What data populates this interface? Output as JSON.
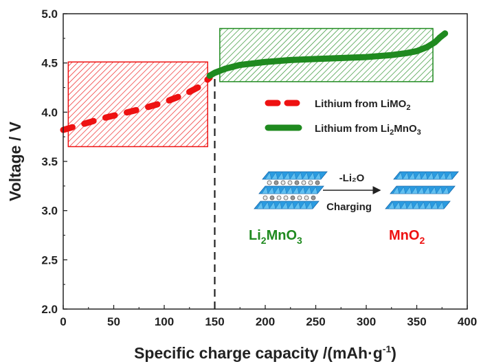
{
  "chart_data": {
    "type": "line",
    "x_axis": {
      "label_prefix": "Specific charge capacity /(mAh·g",
      "label_superscript": "-1",
      "label_suffix": ")",
      "range": [
        0,
        400
      ],
      "ticks": [
        "0",
        "50",
        "100",
        "150",
        "200",
        "250",
        "300",
        "350",
        "400"
      ]
    },
    "y_axis": {
      "label": "Voltage / V",
      "range": [
        2.0,
        5.0
      ],
      "ticks": [
        "2.0",
        "2.5",
        "3.0",
        "3.5",
        "4.0",
        "4.5",
        "5.0"
      ]
    },
    "series": [
      {
        "name": "Lithium from LiMO2",
        "legend_text": "Lithium from LiMO",
        "legend_subscript": "2",
        "style": "dashed",
        "color": "#ee1111",
        "x": [
          0,
          20,
          40,
          60,
          80,
          100,
          120,
          135,
          145
        ],
        "y": [
          3.82,
          3.88,
          3.94,
          3.99,
          4.04,
          4.1,
          4.18,
          4.26,
          4.35
        ]
      },
      {
        "name": "Lithium from Li2MnO3",
        "legend_parts": [
          "Lithium from Li",
          "2",
          "MnO",
          "3"
        ],
        "style": "solid",
        "color": "#1f8a1f",
        "x": [
          145,
          150,
          160,
          175,
          200,
          225,
          250,
          275,
          300,
          325,
          340,
          350,
          360,
          368,
          373,
          378
        ],
        "y": [
          4.37,
          4.4,
          4.44,
          4.48,
          4.51,
          4.53,
          4.54,
          4.55,
          4.56,
          4.58,
          4.6,
          4.62,
          4.66,
          4.71,
          4.76,
          4.8
        ]
      }
    ],
    "regions": [
      {
        "name": "LiMO2 region",
        "color": "#ee1111",
        "x_range": [
          5,
          143
        ],
        "y_range": [
          3.65,
          4.51
        ]
      },
      {
        "name": "Li2MnO3 region",
        "color": "#1f8a1f",
        "x_range": [
          155,
          366
        ],
        "y_range": [
          4.31,
          4.85
        ]
      }
    ],
    "vertical_marker": {
      "x": 150,
      "y_range": [
        2.0,
        4.4
      ],
      "style": "dashed"
    },
    "inset": {
      "reaction_label": "-Li₂O",
      "arrow_label": "Charging",
      "reactant_parts": [
        "Li",
        "2",
        "MnO",
        "3"
      ],
      "product_parts": [
        "MnO",
        "2"
      ],
      "reactant_color": "#1f8a1f",
      "product_color": "#ee1111",
      "layer_color": "#2a9be0"
    }
  }
}
